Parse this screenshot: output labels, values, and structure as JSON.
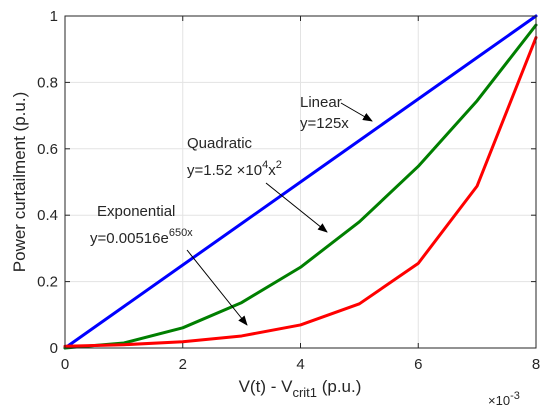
{
  "chart_data": {
    "type": "line",
    "xlabel": "V(t) - V",
    "xlabel_sub": "crit1",
    "xlabel_suffix": " (p.u.)",
    "ylabel": "Power curtailment (p.u.)",
    "xlim": [
      0,
      0.008
    ],
    "ylim": [
      0,
      1
    ],
    "x_ticks": [
      0,
      0.002,
      0.004,
      0.006,
      0.008
    ],
    "x_tick_labels": [
      "0",
      "2",
      "4",
      "6",
      "8"
    ],
    "x_exponent_label": "×10",
    "x_exponent": "-3",
    "y_ticks": [
      0,
      0.2,
      0.4,
      0.6,
      0.8,
      1
    ],
    "y_tick_labels": [
      "0",
      "0.2",
      "0.4",
      "0.6",
      "0.8",
      "1"
    ],
    "grid": true,
    "series": [
      {
        "color": "#0000ff",
        "x": [
          0,
          0.001,
          0.002,
          0.003,
          0.004,
          0.005,
          0.006,
          0.007,
          0.008
        ],
        "y": [
          0,
          0.125,
          0.25,
          0.375,
          0.5,
          0.625,
          0.75,
          0.875,
          1
        ]
      },
      {
        "color": "#007f00",
        "x": [
          0,
          0.001,
          0.002,
          0.003,
          0.004,
          0.005,
          0.006,
          0.007,
          0.008
        ],
        "y": [
          0,
          0.0152,
          0.0608,
          0.1368,
          0.2432,
          0.38,
          0.5472,
          0.7448,
          0.9728
        ]
      },
      {
        "color": "#ff0000",
        "x": [
          0,
          0.001,
          0.002,
          0.003,
          0.004,
          0.005,
          0.006,
          0.007,
          0.008
        ],
        "y": [
          0.00516,
          0.00989,
          0.0189,
          0.0363,
          0.0695,
          0.1331,
          0.2549,
          0.488,
          0.935
        ]
      }
    ],
    "annotations": [
      {
        "id": "linear",
        "name": "Linear",
        "formula": "y=125x"
      },
      {
        "id": "quadratic",
        "name": "Quadratic",
        "formula_parts": [
          "y=1.52 ",
          "×",
          "10",
          "4",
          "x",
          "2"
        ]
      },
      {
        "id": "exponential",
        "name": "Exponential",
        "formula_parts": [
          "y=0.00516e",
          "650x"
        ]
      }
    ]
  }
}
